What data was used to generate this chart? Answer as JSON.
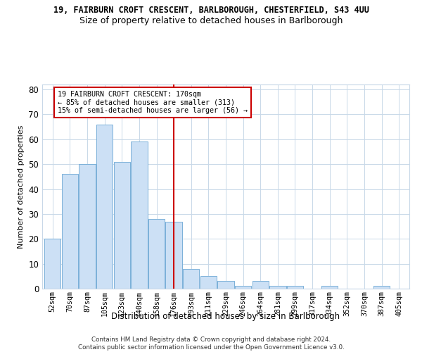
{
  "title_line1": "19, FAIRBURN CROFT CRESCENT, BARLBOROUGH, CHESTERFIELD, S43 4UU",
  "title_line2": "Size of property relative to detached houses in Barlborough",
  "xlabel": "Distribution of detached houses by size in Barlborough",
  "ylabel": "Number of detached properties",
  "categories": [
    "52sqm",
    "70sqm",
    "87sqm",
    "105sqm",
    "123sqm",
    "140sqm",
    "158sqm",
    "176sqm",
    "193sqm",
    "211sqm",
    "229sqm",
    "246sqm",
    "264sqm",
    "281sqm",
    "299sqm",
    "317sqm",
    "334sqm",
    "352sqm",
    "370sqm",
    "387sqm",
    "405sqm"
  ],
  "values": [
    20,
    46,
    50,
    66,
    51,
    59,
    28,
    27,
    8,
    5,
    3,
    1,
    3,
    1,
    1,
    0,
    1,
    0,
    0,
    1,
    0
  ],
  "bar_color": "#cce0f5",
  "bar_edgecolor": "#7ab0d8",
  "vline_x_index": 7,
  "vline_color": "#cc0000",
  "annotation_line1": "19 FAIRBURN CROFT CRESCENT: 170sqm",
  "annotation_line2": "← 85% of detached houses are smaller (313)",
  "annotation_line3": "15% of semi-detached houses are larger (56) →",
  "annotation_box_edgecolor": "#cc0000",
  "ylim": [
    0,
    82
  ],
  "yticks": [
    0,
    10,
    20,
    30,
    40,
    50,
    60,
    70,
    80
  ],
  "footnote": "Contains HM Land Registry data © Crown copyright and database right 2024.\nContains public sector information licensed under the Open Government Licence v3.0.",
  "background_color": "#ffffff",
  "grid_color": "#c8d8e8"
}
